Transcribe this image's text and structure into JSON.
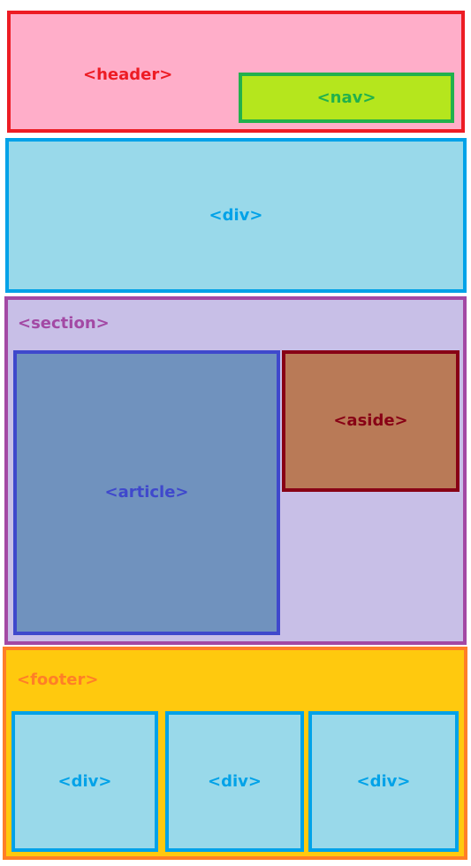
{
  "header": {
    "label": "<header>"
  },
  "nav": {
    "label": "<nav>"
  },
  "main_div": {
    "label": "<div>"
  },
  "section": {
    "label": "<section>"
  },
  "article": {
    "label": "<article>"
  },
  "aside": {
    "label": "<aside>"
  },
  "footer": {
    "label": "<footer>",
    "divs": [
      {
        "label": "<div>"
      },
      {
        "label": "<div>"
      },
      {
        "label": "<div>"
      }
    ]
  },
  "colors": {
    "header_fill": "#ffaec9",
    "header_border": "#ed1c24",
    "nav_fill": "#b5e61d",
    "nav_border": "#22b14c",
    "div_fill": "#99d9ea",
    "div_border": "#00a2e8",
    "section_fill": "#c8bfe7",
    "section_border": "#a349a4",
    "article_fill": "#7092be",
    "article_border": "#3f48cc",
    "aside_fill": "#b97a57",
    "aside_border": "#880015",
    "footer_fill": "#ffc90e",
    "footer_border": "#ff7f27"
  }
}
